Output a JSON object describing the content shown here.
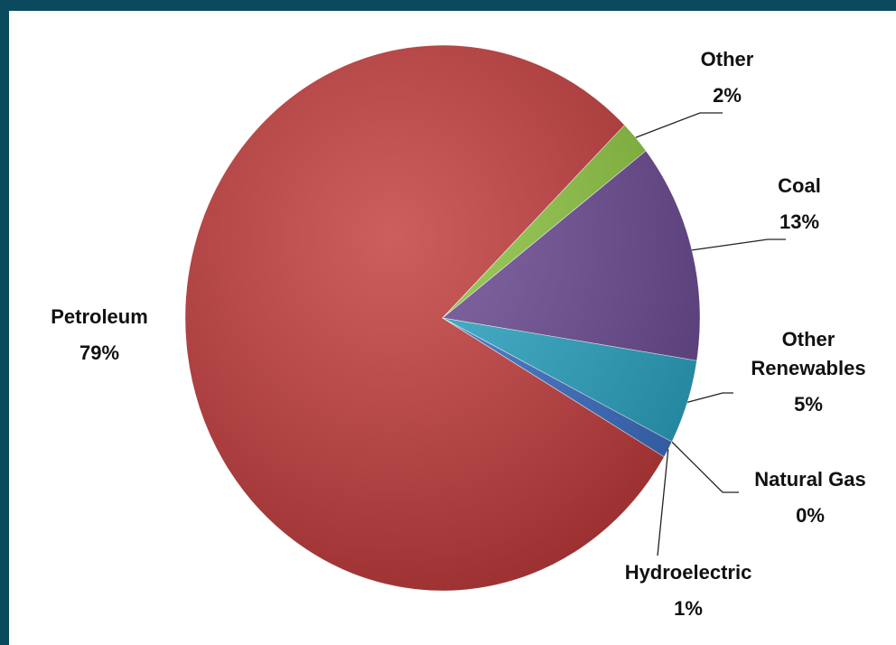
{
  "chart_data": {
    "type": "pie",
    "categories": [
      "Petroleum",
      "Other",
      "Coal",
      "Other Renewables",
      "Natural Gas",
      "Hydroelectric"
    ],
    "values": [
      79,
      2,
      13,
      5,
      0,
      1
    ],
    "value_labels": [
      "79%",
      "2%",
      "13%",
      "5%",
      "0%",
      "1%"
    ],
    "colors": [
      "#c23b3b",
      "#8dc63f",
      "#6b4a94",
      "#2aa6c4",
      "#2e6cbf",
      "#3c6fc6"
    ]
  }
}
